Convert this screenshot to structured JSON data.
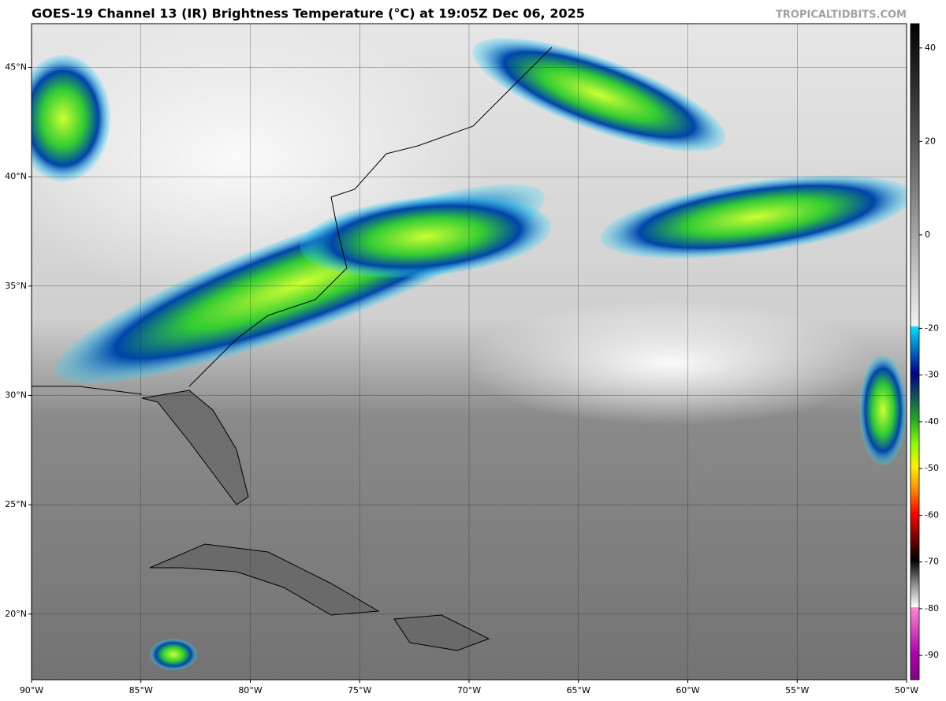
{
  "title": "GOES-19 Channel 13 (IR) Brightness Temperature (°C) at 19:05Z Dec 06, 2025",
  "watermark": "TROPICALTIDBITS.COM",
  "map": {
    "lonlim": [
      -90,
      -50
    ],
    "latlim": [
      17.0,
      47.0
    ],
    "lon_ticks": [
      {
        "value": -90,
        "label": "90°W"
      },
      {
        "value": -85,
        "label": "85°W"
      },
      {
        "value": -80,
        "label": "80°W"
      },
      {
        "value": -75,
        "label": "75°W"
      },
      {
        "value": -70,
        "label": "70°W"
      },
      {
        "value": -65,
        "label": "65°W"
      },
      {
        "value": -60,
        "label": "60°W"
      },
      {
        "value": -55,
        "label": "55°W"
      },
      {
        "value": -50,
        "label": "50°W"
      }
    ],
    "lat_ticks": [
      {
        "value": 20,
        "label": "20°N"
      },
      {
        "value": 25,
        "label": "25°N"
      },
      {
        "value": 30,
        "label": "30°N"
      },
      {
        "value": 35,
        "label": "35°N"
      },
      {
        "value": 40,
        "label": "40°N"
      },
      {
        "value": 45,
        "label": "45°N"
      }
    ]
  },
  "colorbar": {
    "lim": [
      -95.2,
      45.2
    ],
    "ticks": [
      40,
      20,
      0,
      -20,
      -30,
      -40,
      -50,
      -60,
      -70,
      -80,
      -90
    ]
  }
}
